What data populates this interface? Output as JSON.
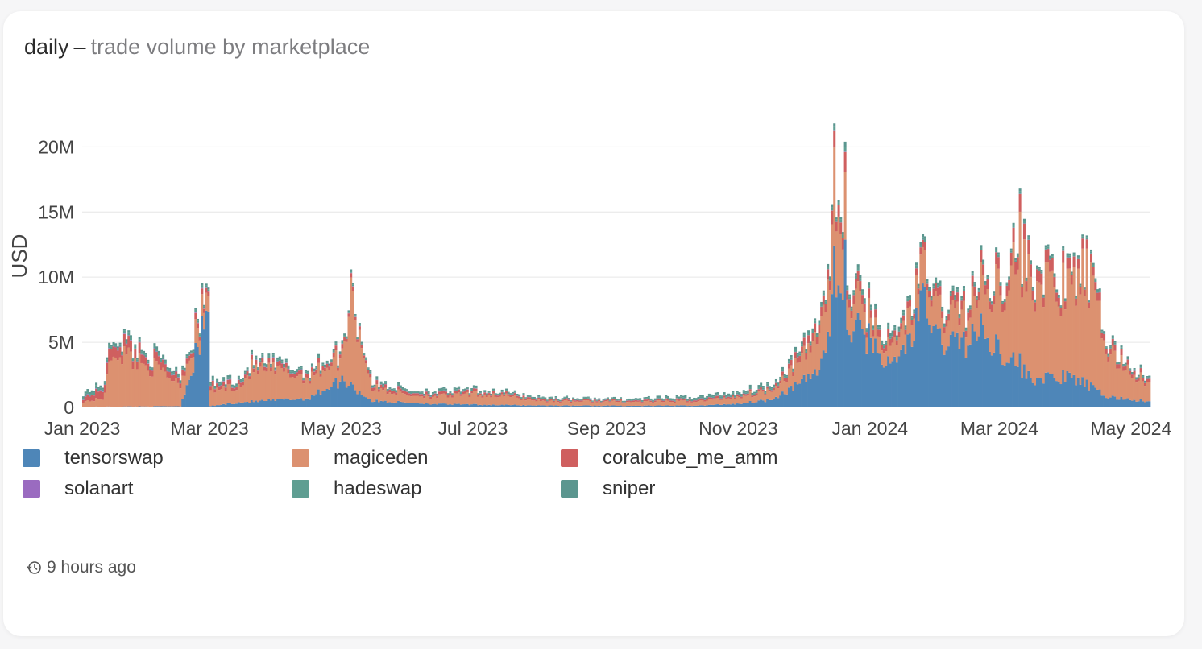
{
  "title": {
    "main": "daily",
    "separator": "–",
    "subtitle": "trade volume by marketplace"
  },
  "footer": {
    "icon": "history-icon",
    "updated": "9 hours ago"
  },
  "chart_data": {
    "type": "bar",
    "stacked": true,
    "granularity": "daily",
    "title": "daily – trade volume by marketplace",
    "xlabel": "",
    "ylabel": "USD",
    "x_range": [
      "2023-01-01",
      "2024-05-10"
    ],
    "ylim": [
      0,
      22000000
    ],
    "x_ticks": [
      "Jan 2023",
      "Mar 2023",
      "May 2023",
      "Jul 2023",
      "Sep 2023",
      "Nov 2023",
      "Jan 2024",
      "Mar 2024",
      "May 2024"
    ],
    "y_ticks": [
      {
        "value": 0,
        "label": "0"
      },
      {
        "value": 5000000,
        "label": "5M"
      },
      {
        "value": 10000000,
        "label": "10M"
      },
      {
        "value": 15000000,
        "label": "15M"
      },
      {
        "value": 20000000,
        "label": "20M"
      }
    ],
    "grid": "horizontal",
    "legend_position": "bottom",
    "series": [
      {
        "name": "tensorswap",
        "color": "#4e86b8",
        "anchors": [
          [
            "2023-01-01",
            0.05
          ],
          [
            "2023-02-15",
            0.1
          ],
          [
            "2023-02-28",
            7.3
          ],
          [
            "2023-03-01",
            0.1
          ],
          [
            "2023-03-15",
            0.4
          ],
          [
            "2023-04-15",
            0.7
          ],
          [
            "2023-05-01",
            2.1
          ],
          [
            "2023-05-15",
            0.5
          ],
          [
            "2023-06-15",
            0.25
          ],
          [
            "2023-08-01",
            0.15
          ],
          [
            "2023-09-15",
            0.12
          ],
          [
            "2023-10-15",
            0.15
          ],
          [
            "2023-11-01",
            0.3
          ],
          [
            "2023-11-15",
            0.6
          ],
          [
            "2023-12-01",
            2.0
          ],
          [
            "2023-12-08",
            3.0
          ],
          [
            "2023-12-14",
            6.5
          ],
          [
            "2023-12-16",
            9.2
          ],
          [
            "2023-12-20",
            6.2
          ],
          [
            "2023-12-25",
            6.0
          ],
          [
            "2024-01-01",
            5.2
          ],
          [
            "2024-01-10",
            3.0
          ],
          [
            "2024-01-20",
            5.5
          ],
          [
            "2024-01-25",
            8.2
          ],
          [
            "2024-02-01",
            5.2
          ],
          [
            "2024-02-15",
            5.0
          ],
          [
            "2024-02-20",
            6.0
          ],
          [
            "2024-03-01",
            4.5
          ],
          [
            "2024-03-15",
            2.2
          ],
          [
            "2024-04-01",
            2.3
          ],
          [
            "2024-04-10",
            1.8
          ],
          [
            "2024-04-15",
            1.2
          ],
          [
            "2024-04-20",
            0.8
          ],
          [
            "2024-05-01",
            0.6
          ],
          [
            "2024-05-10",
            0.4
          ]
        ]
      },
      {
        "name": "magiceden",
        "color": "#dc9170",
        "anchors": [
          [
            "2023-01-01",
            0.4
          ],
          [
            "2023-01-10",
            0.6
          ],
          [
            "2023-01-15",
            4.4
          ],
          [
            "2023-01-25",
            3.6
          ],
          [
            "2023-02-05",
            2.8
          ],
          [
            "2023-02-15",
            1.8
          ],
          [
            "2023-02-28",
            1.2
          ],
          [
            "2023-03-15",
            1.3
          ],
          [
            "2023-03-20",
            2.5
          ],
          [
            "2023-04-01",
            2.2
          ],
          [
            "2023-04-15",
            1.6
          ],
          [
            "2023-05-01",
            1.8
          ],
          [
            "2023-05-05",
            6.8
          ],
          [
            "2023-05-15",
            1.0
          ],
          [
            "2023-06-01",
            0.6
          ],
          [
            "2023-06-15",
            0.6
          ],
          [
            "2023-07-01",
            0.8
          ],
          [
            "2023-07-15",
            0.7
          ],
          [
            "2023-08-01",
            0.35
          ],
          [
            "2023-09-15",
            0.3
          ],
          [
            "2023-10-15",
            0.35
          ],
          [
            "2023-11-15",
            0.7
          ],
          [
            "2023-12-01",
            1.8
          ],
          [
            "2023-12-14",
            4.0
          ],
          [
            "2023-12-16",
            5.5
          ],
          [
            "2023-12-20",
            2.5
          ],
          [
            "2024-01-01",
            1.5
          ],
          [
            "2024-01-10",
            1.2
          ],
          [
            "2024-01-25",
            2.4
          ],
          [
            "2024-02-01",
            2.2
          ],
          [
            "2024-02-15",
            2.0
          ],
          [
            "2024-03-01",
            5.0
          ],
          [
            "2024-03-10",
            8.0
          ],
          [
            "2024-03-15",
            7.5
          ],
          [
            "2024-04-01",
            6.5
          ],
          [
            "2024-04-10",
            8.5
          ],
          [
            "2024-04-15",
            6.0
          ],
          [
            "2024-04-20",
            3.5
          ],
          [
            "2024-05-01",
            2.0
          ],
          [
            "2024-05-10",
            1.2
          ]
        ]
      },
      {
        "name": "coralcube_me_amm",
        "color": "#cf5f5f",
        "anchors": [
          [
            "2023-01-01",
            0.3
          ],
          [
            "2023-01-15",
            0.9
          ],
          [
            "2023-02-01",
            0.6
          ],
          [
            "2023-03-01",
            0.3
          ],
          [
            "2023-05-01",
            0.3
          ],
          [
            "2023-06-01",
            0.2
          ],
          [
            "2023-09-01",
            0.08
          ],
          [
            "2023-11-15",
            0.15
          ],
          [
            "2023-12-15",
            0.8
          ],
          [
            "2024-01-15",
            0.4
          ],
          [
            "2024-03-01",
            0.8
          ],
          [
            "2024-03-10",
            1.0
          ],
          [
            "2024-04-10",
            0.6
          ],
          [
            "2024-05-10",
            0.2
          ]
        ]
      },
      {
        "name": "solanart",
        "color": "#9a6bc0",
        "anchors": [
          [
            "2023-01-01",
            0.04
          ],
          [
            "2023-06-01",
            0.02
          ],
          [
            "2024-05-10",
            0.01
          ]
        ]
      },
      {
        "name": "hadeswap",
        "color": "#5f9e92",
        "anchors": [
          [
            "2023-01-01",
            0.2
          ],
          [
            "2023-03-01",
            0.15
          ],
          [
            "2023-06-01",
            0.1
          ],
          [
            "2023-09-01",
            0.06
          ],
          [
            "2024-01-01",
            0.2
          ],
          [
            "2024-05-10",
            0.1
          ]
        ]
      },
      {
        "name": "sniper",
        "color": "#5b968f",
        "anchors": [
          [
            "2023-01-01",
            0.15
          ],
          [
            "2023-06-01",
            0.1
          ],
          [
            "2023-09-01",
            0.05
          ],
          [
            "2024-01-01",
            0.2
          ],
          [
            "2024-05-10",
            0.1
          ]
        ]
      }
    ],
    "spikes": [
      {
        "date": "2023-12-15",
        "total": 21.8
      },
      {
        "date": "2023-12-20",
        "total": 20.4
      },
      {
        "date": "2023-12-14",
        "total": 15.6
      },
      {
        "date": "2024-01-25",
        "total": 13.3
      },
      {
        "date": "2024-03-10",
        "total": 16.8
      },
      {
        "date": "2023-05-05",
        "total": 10.6
      },
      {
        "date": "2023-02-28",
        "total": 9.2
      },
      {
        "date": "2024-04-10",
        "total": 13.2
      }
    ],
    "values_unit": "million USD"
  }
}
